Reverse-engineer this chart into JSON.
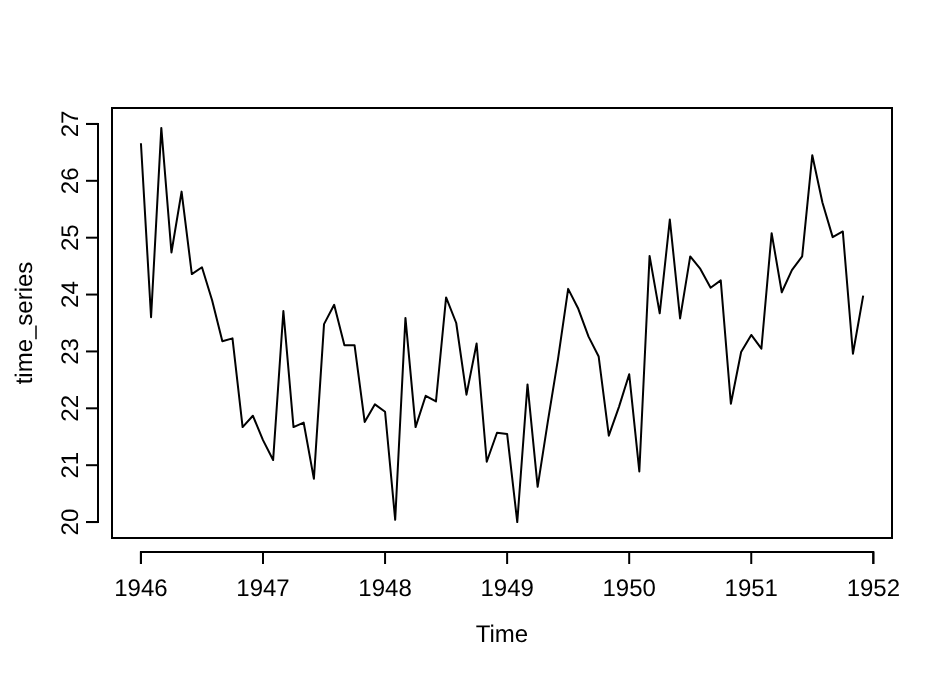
{
  "chart_data": {
    "type": "line",
    "xlabel": "Time",
    "ylabel": "time_series",
    "color": "#000000",
    "grid": false,
    "marker": "none",
    "line_style": "solid",
    "x": [
      1946,
      1946.083,
      1946.167,
      1946.25,
      1946.333,
      1946.417,
      1946.5,
      1946.583,
      1946.667,
      1946.75,
      1946.833,
      1946.917,
      1947,
      1947.083,
      1947.167,
      1947.25,
      1947.333,
      1947.417,
      1947.5,
      1947.583,
      1947.667,
      1947.75,
      1947.833,
      1947.917,
      1948,
      1948.083,
      1948.167,
      1948.25,
      1948.333,
      1948.417,
      1948.5,
      1948.583,
      1948.667,
      1948.75,
      1948.833,
      1948.917,
      1949,
      1949.083,
      1949.167,
      1949.25,
      1949.333,
      1949.417,
      1949.5,
      1949.583,
      1949.667,
      1949.75,
      1949.833,
      1949.917,
      1950,
      1950.083,
      1950.167,
      1950.25,
      1950.333,
      1950.417,
      1950.5,
      1950.583,
      1950.667,
      1950.75,
      1950.833,
      1950.917,
      1951,
      1951.083,
      1951.167,
      1951.25,
      1951.333,
      1951.417,
      1951.5,
      1951.583,
      1951.667,
      1951.75,
      1951.833,
      1951.917
    ],
    "values": [
      26.66,
      23.6,
      26.93,
      24.74,
      25.81,
      24.36,
      24.48,
      23.9,
      23.18,
      23.23,
      21.67,
      21.87,
      21.44,
      21.09,
      23.71,
      21.67,
      21.75,
      20.76,
      23.48,
      23.82,
      23.11,
      23.11,
      21.76,
      22.07,
      21.94,
      20.04,
      23.59,
      21.67,
      22.22,
      22.12,
      23.95,
      23.5,
      22.24,
      23.14,
      21.06,
      21.57,
      21.55,
      20.0,
      22.42,
      20.62,
      21.76,
      22.87,
      24.1,
      23.75,
      23.26,
      22.91,
      21.52,
      22.03,
      22.6,
      20.89,
      24.68,
      23.67,
      25.32,
      23.58,
      24.67,
      24.45,
      24.12,
      24.25,
      22.08,
      22.99,
      23.29,
      23.05,
      25.08,
      24.04,
      24.43,
      24.67,
      26.45,
      25.62,
      25.01,
      25.11,
      22.96,
      23.98
    ],
    "xlim": [
      1945.763,
      1952.153
    ],
    "ylim": [
      19.72,
      27.28
    ],
    "xticks": [
      1946,
      1947,
      1948,
      1949,
      1950,
      1951,
      1952
    ],
    "yticks": [
      20,
      21,
      22,
      23,
      24,
      25,
      26,
      27
    ]
  }
}
